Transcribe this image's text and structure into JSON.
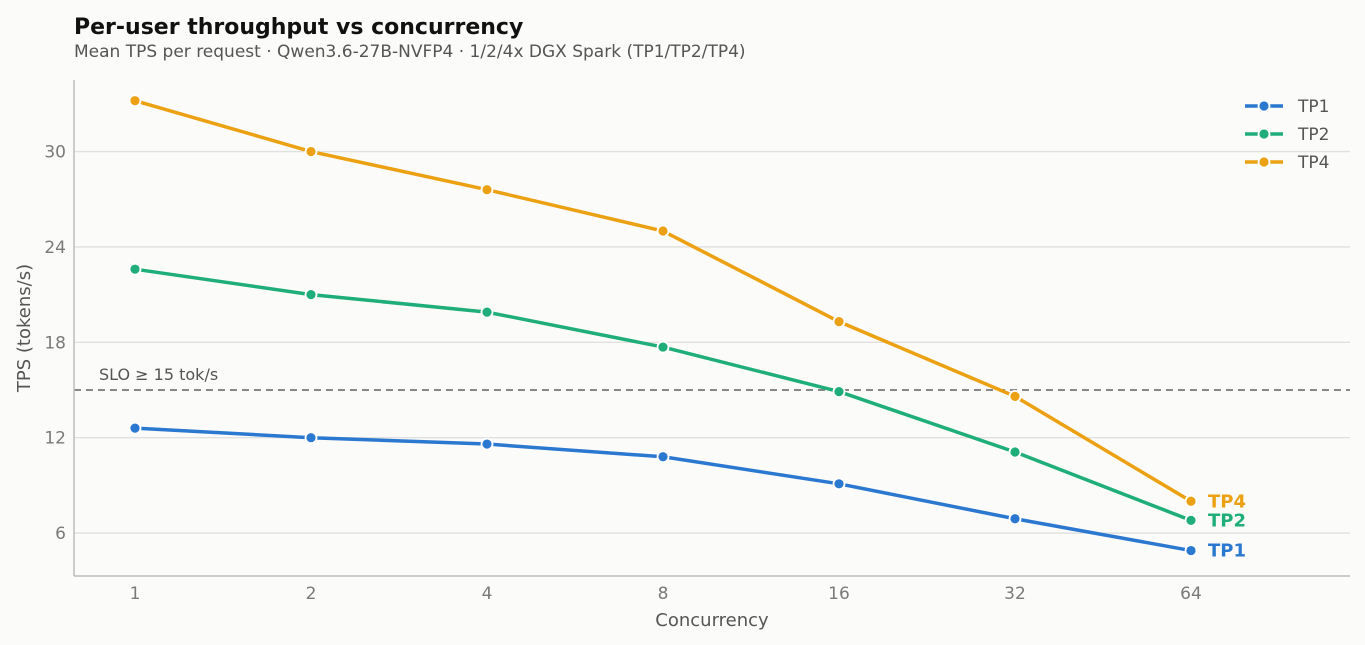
{
  "chart_data": {
    "type": "line",
    "title": "Per-user throughput vs concurrency",
    "subtitle": "Mean TPS per request · Qwen3.6-27B-NVFP4 · 1/2/4x DGX Spark (TP1/TP2/TP4)",
    "xlabel": "Concurrency",
    "ylabel": "TPS (tokens/s)",
    "x_scale": "log2",
    "x": [
      1,
      2,
      4,
      8,
      16,
      32,
      64
    ],
    "x_tick_labels": [
      "1",
      "2",
      "4",
      "8",
      "16",
      "32",
      "64"
    ],
    "y_ticks": [
      6,
      12,
      18,
      24,
      30
    ],
    "ylim": [
      3.3,
      34.5
    ],
    "grid": "horizontal",
    "legend_position": "top-right",
    "reference_line": {
      "y": 15,
      "label": "SLO ≥ 15 tok/s",
      "color": "#888888"
    },
    "series": [
      {
        "name": "TP1",
        "color": "#2b78d0",
        "values": [
          12.6,
          12.0,
          11.6,
          10.8,
          9.1,
          6.9,
          4.9
        ],
        "end_label": "TP1"
      },
      {
        "name": "TP2",
        "color": "#1fae7a",
        "values": [
          22.6,
          21.0,
          19.9,
          17.7,
          14.9,
          11.1,
          6.8
        ],
        "end_label": "TP2"
      },
      {
        "name": "TP4",
        "color": "#eba112",
        "values": [
          33.2,
          30.0,
          27.6,
          25.0,
          19.3,
          14.6,
          8.0
        ],
        "end_label": "TP4"
      }
    ]
  }
}
